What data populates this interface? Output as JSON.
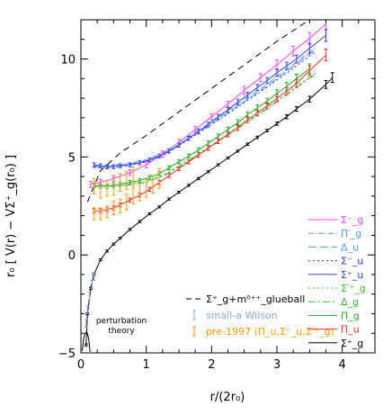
{
  "chart_data": {
    "type": "line",
    "xlabel": "r/(2r₀)",
    "ylabel": "r₀ [ V(r) − VΣ⁺_g(r₀) ]",
    "xlim": [
      0,
      4.5
    ],
    "ylim": [
      -5,
      12
    ],
    "xticks": [
      "0",
      "1",
      "2",
      "3",
      "4"
    ],
    "xtick_values": [
      0,
      1,
      2,
      3,
      4
    ],
    "yticks": [
      "−5",
      "0",
      "5",
      "10"
    ],
    "ytick_values": [
      -5,
      0,
      5,
      10
    ],
    "grid": false,
    "legend_position": "right",
    "annotation": [
      "perturbation",
      "theory"
    ],
    "series": [
      {
        "name": "Σ⁺_g + m⁰⁺⁺_glueball",
        "color": "#000000",
        "dash": "7,5",
        "x": [
          0.1,
          0.3,
          0.6,
          1.0,
          1.5,
          2.0,
          2.5,
          3.0,
          3.5,
          4.0
        ],
        "y": [
          2.7,
          4.3,
          5.2,
          6.1,
          7.3,
          8.5,
          9.7,
          10.9,
          12.0,
          13.1
        ]
      },
      {
        "name": "Σ⁻_g",
        "color": "#ff44ff",
        "dash": "",
        "x": [
          0.15,
          0.3,
          0.5,
          0.75,
          1.0,
          1.25,
          1.5,
          1.75,
          2.0,
          2.25,
          2.5,
          2.75,
          3.0,
          3.25,
          3.5,
          3.75
        ],
        "y": [
          3.6,
          3.7,
          3.9,
          4.2,
          4.6,
          5.15,
          5.75,
          6.4,
          7.05,
          7.7,
          8.4,
          9.05,
          9.7,
          10.4,
          11.05,
          11.8
        ],
        "err": [
          0.15,
          0.15,
          0.15,
          0.15,
          0.15,
          0.15,
          0.15,
          0.15,
          0.15,
          0.15,
          0.2,
          0.2,
          0.25,
          0.25,
          0.3,
          0.3
        ]
      },
      {
        "name": "Π′_g",
        "color": "#5599dd",
        "dash": "6,2,1,2",
        "x": [
          0.2,
          0.4,
          0.7,
          1.0,
          1.3,
          1.6,
          2.0,
          2.4,
          2.8,
          3.2,
          3.6
        ],
        "y": [
          4.55,
          4.55,
          4.65,
          4.85,
          5.3,
          5.95,
          6.8,
          7.7,
          8.6,
          9.6,
          10.6
        ]
      },
      {
        "name": "Δ_u",
        "color": "#5599dd",
        "dash": "9,4",
        "x": [
          0.2,
          0.4,
          0.7,
          1.0,
          1.3,
          1.6,
          2.0,
          2.4,
          2.8,
          3.2,
          3.6
        ],
        "y": [
          4.5,
          4.5,
          4.6,
          4.8,
          5.2,
          5.85,
          6.7,
          7.6,
          8.5,
          9.5,
          10.5
        ]
      },
      {
        "name": "Σ⁻_u",
        "color": "#2233ee",
        "dash": "2,3",
        "x": [
          0.2,
          0.4,
          0.7,
          1.0,
          1.3,
          1.6,
          2.0,
          2.4,
          2.8,
          3.2,
          3.6
        ],
        "y": [
          4.45,
          4.45,
          4.55,
          4.75,
          5.15,
          5.8,
          6.65,
          7.55,
          8.45,
          9.4,
          10.4
        ]
      },
      {
        "name": "Σ⁺_u",
        "color": "#3344dd",
        "dash": "",
        "x": [
          0.2,
          0.3,
          0.4,
          0.5,
          0.6,
          0.75,
          0.9,
          1.05,
          1.2,
          1.35,
          1.5,
          1.65,
          1.8,
          1.95,
          2.1,
          2.25,
          2.4,
          2.55,
          2.7,
          2.85,
          3.0,
          3.15,
          3.3,
          3.5,
          3.75
        ],
        "y": [
          4.6,
          4.55,
          4.5,
          4.5,
          4.55,
          4.6,
          4.7,
          4.85,
          5.05,
          5.3,
          5.6,
          5.95,
          6.3,
          6.65,
          7.05,
          7.4,
          7.8,
          8.15,
          8.55,
          8.9,
          9.3,
          9.65,
          10.0,
          10.55,
          11.2
        ],
        "err": [
          0.1,
          0.1,
          0.1,
          0.1,
          0.1,
          0.1,
          0.1,
          0.1,
          0.1,
          0.1,
          0.1,
          0.1,
          0.12,
          0.12,
          0.12,
          0.12,
          0.15,
          0.15,
          0.15,
          0.15,
          0.18,
          0.18,
          0.2,
          0.25,
          0.3
        ]
      },
      {
        "name": "Σ′⁺_g",
        "color": "#33bb33",
        "dash": "2,3",
        "x": [
          0.2,
          0.4,
          0.7,
          1.0,
          1.3,
          1.6,
          2.0,
          2.4,
          2.8,
          3.2,
          3.6
        ],
        "y": [
          3.55,
          3.55,
          3.6,
          3.75,
          4.15,
          4.75,
          5.6,
          6.5,
          7.4,
          8.35,
          9.3
        ]
      },
      {
        "name": "Δ_g",
        "color": "#33bb33",
        "dash": "8,3,2,3",
        "x": [
          0.2,
          0.4,
          0.7,
          1.0,
          1.3,
          1.6,
          2.0,
          2.4,
          2.8,
          3.2,
          3.6
        ],
        "y": [
          3.5,
          3.5,
          3.55,
          3.7,
          4.1,
          4.7,
          5.55,
          6.45,
          7.35,
          8.3,
          9.25
        ]
      },
      {
        "name": "Π_g",
        "color": "#22aa22",
        "dash": "",
        "x": [
          0.2,
          0.3,
          0.4,
          0.5,
          0.6,
          0.75,
          0.9,
          1.05,
          1.2,
          1.35,
          1.5,
          1.65,
          1.8,
          1.95,
          2.1,
          2.25,
          2.4,
          2.55,
          2.7,
          2.85,
          3.0,
          3.15,
          3.3,
          3.5
        ],
        "y": [
          3.55,
          3.5,
          3.5,
          3.55,
          3.6,
          3.7,
          3.8,
          3.95,
          4.15,
          4.45,
          4.75,
          5.05,
          5.35,
          5.7,
          6.05,
          6.4,
          6.75,
          7.15,
          7.5,
          7.85,
          8.25,
          8.6,
          9.0,
          9.5
        ],
        "err": [
          0.1,
          0.1,
          0.1,
          0.1,
          0.1,
          0.1,
          0.1,
          0.1,
          0.1,
          0.1,
          0.1,
          0.1,
          0.12,
          0.12,
          0.12,
          0.12,
          0.15,
          0.15,
          0.15,
          0.15,
          0.18,
          0.2,
          0.22,
          0.25
        ]
      },
      {
        "name": "Π_u",
        "color": "#ee3322",
        "dash": "",
        "x": [
          0.2,
          0.3,
          0.4,
          0.5,
          0.6,
          0.75,
          0.9,
          1.05,
          1.2,
          1.35,
          1.5,
          1.65,
          1.8,
          1.95,
          2.1,
          2.25,
          2.4,
          2.55,
          2.7,
          2.85,
          3.0,
          3.15,
          3.3,
          3.5,
          3.75
        ],
        "y": [
          2.25,
          2.25,
          2.3,
          2.4,
          2.55,
          2.8,
          3.05,
          3.35,
          3.7,
          4.05,
          4.4,
          4.75,
          5.1,
          5.45,
          5.8,
          6.15,
          6.5,
          6.9,
          7.25,
          7.6,
          8.0,
          8.35,
          8.75,
          9.4,
          10.2
        ],
        "err": [
          0.1,
          0.1,
          0.1,
          0.1,
          0.1,
          0.1,
          0.1,
          0.1,
          0.1,
          0.1,
          0.1,
          0.1,
          0.12,
          0.12,
          0.12,
          0.12,
          0.15,
          0.15,
          0.15,
          0.15,
          0.18,
          0.18,
          0.2,
          0.25,
          0.3
        ]
      },
      {
        "name": "Σ⁺_g",
        "color": "#000000",
        "dash": "",
        "x": [
          0.08,
          0.1,
          0.15,
          0.2,
          0.3,
          0.4,
          0.5,
          0.6,
          0.75,
          0.9,
          1.05,
          1.2,
          1.35,
          1.5,
          1.65,
          1.8,
          1.95,
          2.1,
          2.25,
          2.4,
          2.55,
          2.7,
          2.85,
          3.0,
          3.15,
          3.3,
          3.5,
          3.75,
          3.85
        ],
        "y": [
          -4.6,
          -3.0,
          -1.7,
          -1.0,
          -0.25,
          0.2,
          0.55,
          0.85,
          1.3,
          1.7,
          2.1,
          2.45,
          2.85,
          3.2,
          3.55,
          3.9,
          4.25,
          4.6,
          4.95,
          5.3,
          5.65,
          6.0,
          6.35,
          6.7,
          7.05,
          7.45,
          7.95,
          8.7,
          9.05
        ],
        "err": [
          0.05,
          0.05,
          0.05,
          0.05,
          0.05,
          0.05,
          0.05,
          0.05,
          0.05,
          0.05,
          0.05,
          0.05,
          0.05,
          0.05,
          0.05,
          0.05,
          0.05,
          0.05,
          0.05,
          0.05,
          0.06,
          0.06,
          0.06,
          0.08,
          0.1,
          0.12,
          0.15,
          0.2,
          0.25
        ]
      }
    ],
    "extra_markers": [
      {
        "name": "small-a Wilson",
        "color": "#88aadd",
        "x": [
          0.08,
          0.1,
          0.13,
          0.17,
          0.2
        ],
        "y": [
          -3.5,
          -2.8,
          -2.1,
          -1.5,
          -1.1
        ],
        "err": [
          0.2,
          0.2,
          0.2,
          0.2,
          0.2
        ]
      },
      {
        "name": "pre-1997 (Π_u, Σ⁻_u, Σ′⁺_g)",
        "color": "#ff9900",
        "x": [
          0.2,
          0.3,
          0.4,
          0.5,
          0.6,
          0.7,
          0.8,
          0.9,
          1.0,
          1.1,
          1.2,
          0.2,
          0.3,
          0.4,
          0.5,
          0.6,
          0.7,
          0.8
        ],
        "y": [
          2.1,
          2.1,
          2.2,
          2.4,
          2.5,
          2.7,
          3.0,
          3.2,
          3.4,
          3.6,
          3.9,
          3.5,
          3.3,
          3.4,
          3.5,
          3.7,
          3.8,
          4.0
        ],
        "err": [
          0.3,
          0.3,
          0.3,
          0.35,
          0.35,
          0.4,
          0.4,
          0.45,
          0.45,
          0.45,
          0.5,
          0.4,
          0.4,
          0.4,
          0.45,
          0.45,
          0.45,
          0.5
        ]
      }
    ],
    "perturbation_theory": {
      "color": "#000000",
      "x": [
        0.02,
        0.04,
        0.06,
        0.08,
        0.1,
        0.12,
        0.14
      ],
      "y": [
        -4.9,
        -4.3,
        -4.05,
        -3.95,
        -4.0,
        -4.3,
        -4.95
      ]
    }
  },
  "legend": {
    "upper": [
      {
        "label": "Σ⁻_g",
        "color": "#ff44ff",
        "dash": ""
      },
      {
        "label": "Π′_g",
        "color": "#5599dd",
        "dash": "6,2,1,2"
      },
      {
        "label": "Δ_u",
        "color": "#5599dd",
        "dash": "9,4"
      },
      {
        "label": "Σ⁻_u",
        "color": "#2233ee",
        "dash": "2,3"
      },
      {
        "label": "Σ⁺_u",
        "color": "#3344dd",
        "dash": ""
      },
      {
        "label": "Σ′⁺_g",
        "color": "#33bb33",
        "dash": "2,3"
      },
      {
        "label": "Δ_g",
        "color": "#33bb33",
        "dash": "8,3,2,3"
      },
      {
        "label": "Π_g",
        "color": "#22aa22",
        "dash": ""
      },
      {
        "label": "Π_u",
        "color": "#ee3322",
        "dash": ""
      },
      {
        "label": "Σ⁺_g",
        "color": "#000000",
        "dash": ""
      }
    ],
    "lower": [
      {
        "label": "Σ⁺_g+m⁰⁺⁺_glueball",
        "color": "#000000",
        "kind": "dash"
      },
      {
        "label": "small-a Wilson",
        "color": "#88aadd",
        "kind": "err"
      },
      {
        "label": "pre-1997 (Π_u,Σ⁻_u,Σ′⁺_g)",
        "color": "#ff9900",
        "kind": "err"
      }
    ]
  }
}
